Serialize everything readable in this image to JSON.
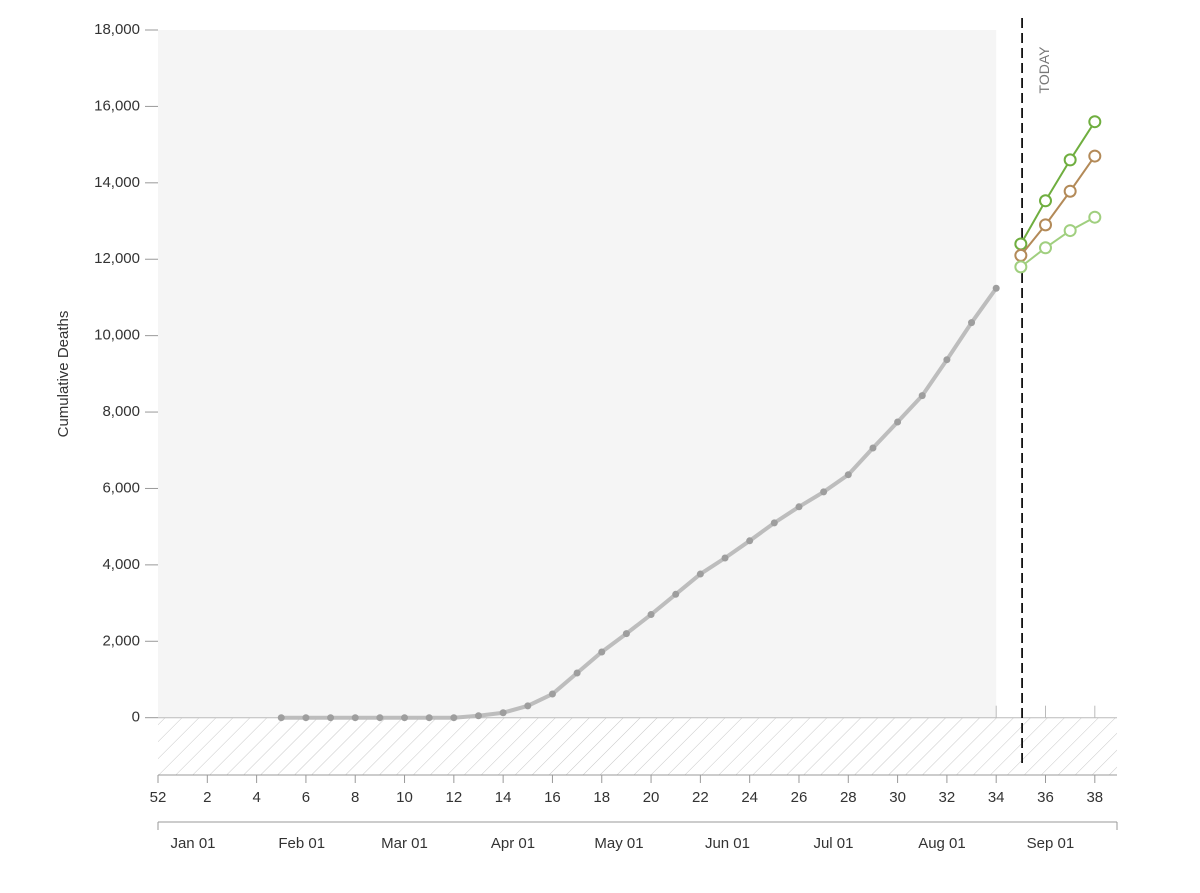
{
  "chart_data": {
    "type": "line",
    "y_label": "Cumulative Deaths",
    "xlim": [
      0,
      38.9
    ],
    "ylim": [
      -1500,
      18000
    ],
    "yticks": [
      0,
      {
        "value": 2000,
        "label": "2,000"
      },
      {
        "value": 4000,
        "label": "4,000"
      },
      {
        "value": 6000,
        "label": "6,000"
      },
      {
        "value": 8000,
        "label": "8,000"
      },
      {
        "value": 10000,
        "label": "10,000"
      },
      {
        "value": 12000,
        "label": "12,000"
      },
      {
        "value": 14000,
        "label": "14,000"
      },
      {
        "value": 16000,
        "label": "16,000"
      },
      {
        "value": 18000,
        "label": "18,000"
      }
    ],
    "xticks": [
      {
        "value": 0,
        "label": "52"
      },
      2,
      4,
      6,
      8,
      10,
      12,
      14,
      16,
      18,
      20,
      22,
      24,
      26,
      28,
      30,
      32,
      34,
      36,
      38
    ],
    "month_axis": {
      "labels": [
        "Jan 01",
        "Feb 01",
        "Mar 01",
        "Apr 01",
        "May 01",
        "Jun 01",
        "Jul 01",
        "Aug 01",
        "Sep 01"
      ],
      "x": [
        1.42,
        5.83,
        10.0,
        14.4,
        18.7,
        23.1,
        27.4,
        31.8,
        36.2
      ]
    },
    "today": {
      "text": "TODAY",
      "x": 35.05
    },
    "series": [
      {
        "color": "#bdbdbd",
        "marker_color": "#9e9e9e",
        "filled": true,
        "x": [
          5,
          6,
          7,
          8,
          9,
          10,
          11,
          12,
          13,
          14,
          15,
          16,
          17,
          18,
          19,
          20,
          21,
          22,
          23,
          24,
          25,
          26,
          27,
          28,
          29,
          30,
          31,
          32,
          33,
          34
        ],
        "values": [
          0,
          0,
          0,
          0,
          0,
          0,
          0,
          0,
          50,
          130,
          310,
          620,
          1170,
          1720,
          2200,
          2700,
          3230,
          3760,
          4180,
          4630,
          5100,
          5520,
          5910,
          6360,
          7060,
          7740,
          8430,
          9370,
          10340,
          11240
        ]
      },
      {
        "color": "#6fae3f",
        "filled": false,
        "x": [
          35,
          36,
          37,
          38
        ],
        "values": [
          12400,
          13530,
          14600,
          15600
        ]
      },
      {
        "color": "#b38a58",
        "filled": false,
        "x": [
          35,
          36,
          37,
          38
        ],
        "values": [
          12100,
          12900,
          13780,
          14700
        ]
      },
      {
        "color": "#a0cf7f",
        "filled": false,
        "x": [
          35,
          36,
          37,
          38
        ],
        "values": [
          11800,
          12300,
          12750,
          13100
        ]
      }
    ]
  }
}
